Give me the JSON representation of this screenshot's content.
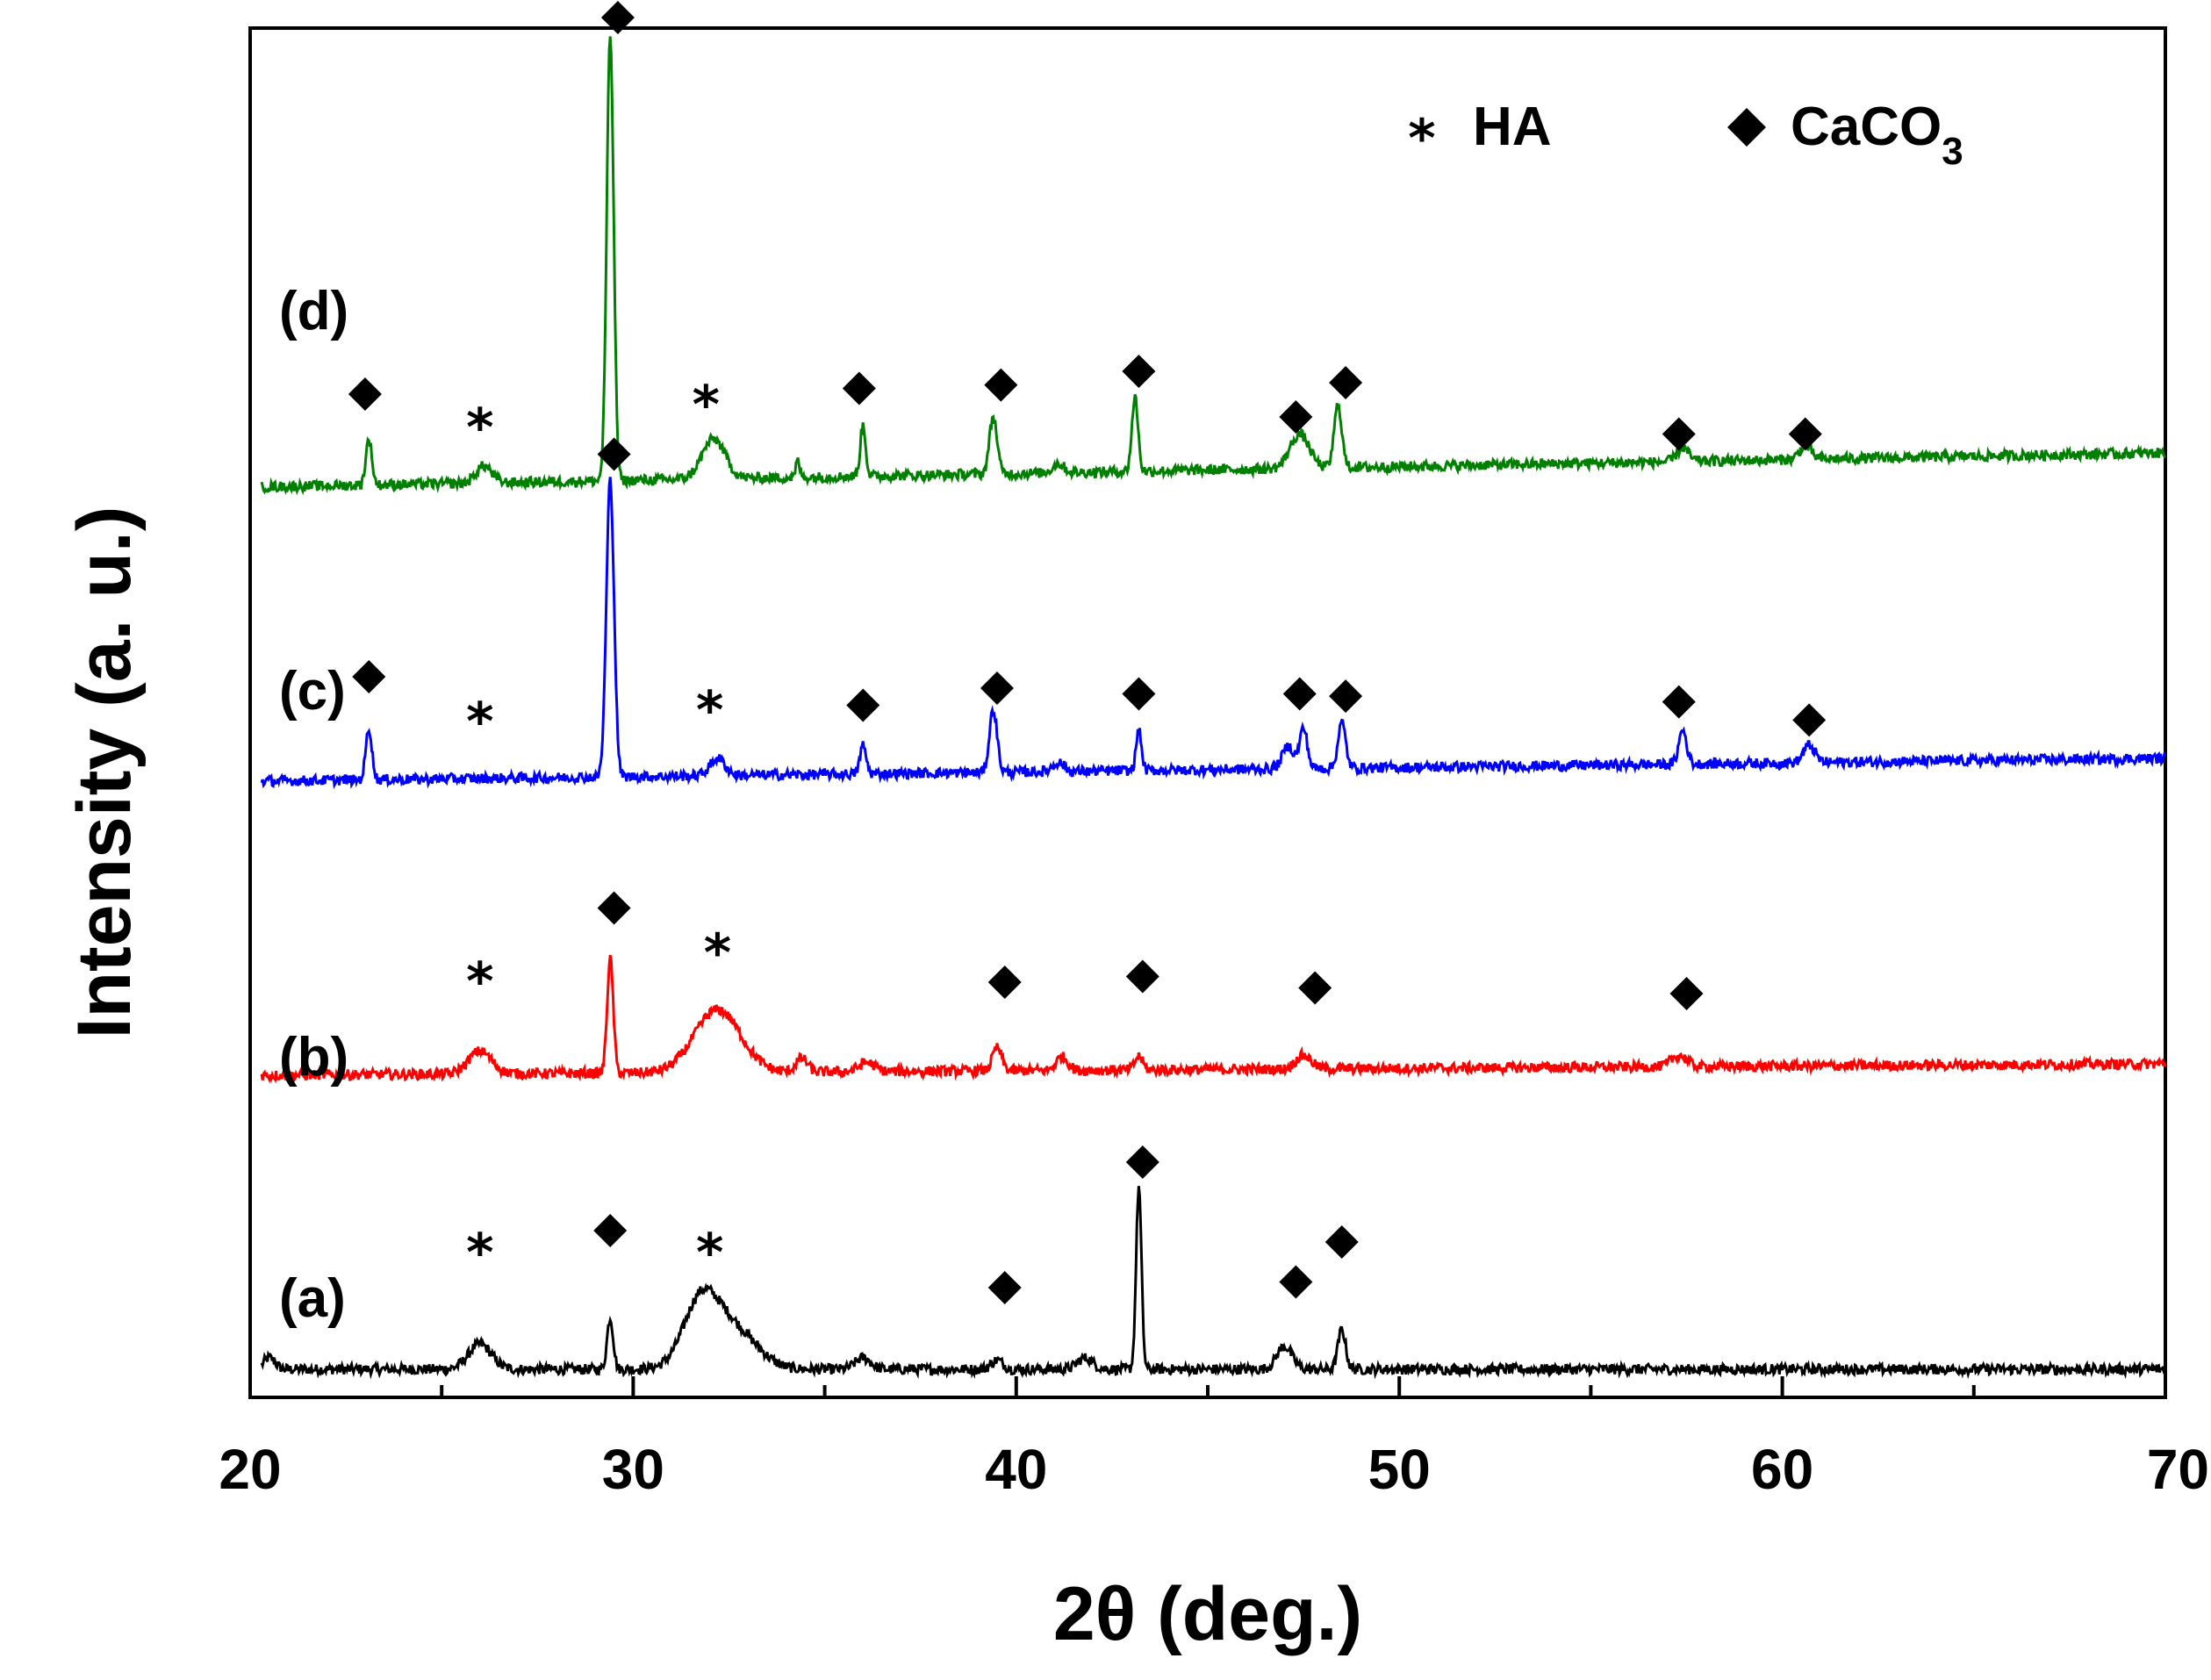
{
  "chart_data": {
    "type": "line",
    "title": "",
    "xlabel": "2θ (deg.)",
    "ylabel": "Intensity (a. u.)",
    "xlim": [
      20,
      70
    ],
    "xticks": [
      20,
      30,
      40,
      50,
      60,
      70
    ],
    "legend": {
      "placement": "top-right",
      "items": [
        {
          "symbol": "*",
          "label": "HA"
        },
        {
          "symbol": "◆",
          "label_main": "CaCO",
          "label_sub": "3"
        }
      ]
    },
    "series": [
      {
        "name": "(a)",
        "color": "#000000",
        "baseline": 0,
        "peaks": [
          [
            20.5,
            0.1,
            0.15
          ],
          [
            26.0,
            0.22,
            0.3
          ],
          [
            29.4,
            0.45,
            0.08
          ],
          [
            31.7,
            0.3,
            0.4
          ],
          [
            32.1,
            0.45,
            0.6
          ],
          [
            33.0,
            0.15,
            0.5
          ],
          [
            36.0,
            0.1,
            0.2
          ],
          [
            39.5,
            0.08,
            0.15
          ],
          [
            41.8,
            0.1,
            0.2
          ],
          [
            43.2,
            1.6,
            0.07
          ],
          [
            47.0,
            0.2,
            0.2
          ],
          [
            48.5,
            0.35,
            0.1
          ]
        ],
        "markers": [
          {
            "type": "HA",
            "x": 26.0,
            "level": 0.85
          },
          {
            "type": "CaCO3",
            "x": 29.4,
            "level": 1.0
          },
          {
            "type": "HA",
            "x": 32.0,
            "level": 0.85
          },
          {
            "type": "CaCO3",
            "x": 39.7,
            "level": 0.5
          },
          {
            "type": "CaCO3",
            "x": 43.3,
            "level": 1.6
          },
          {
            "type": "CaCO3",
            "x": 47.3,
            "level": 0.55
          },
          {
            "type": "CaCO3",
            "x": 48.5,
            "level": 0.9
          }
        ]
      },
      {
        "name": "(b)",
        "color": "#ff0000",
        "baseline": 1,
        "peaks": [
          [
            26.0,
            0.2,
            0.3
          ],
          [
            29.4,
            1.0,
            0.08
          ],
          [
            32.2,
            0.55,
            0.6
          ],
          [
            34.4,
            0.12,
            0.15
          ],
          [
            36.1,
            0.08,
            0.2
          ],
          [
            39.5,
            0.2,
            0.12
          ],
          [
            41.2,
            0.12,
            0.15
          ],
          [
            43.2,
            0.12,
            0.1
          ],
          [
            47.5,
            0.12,
            0.2
          ],
          [
            57.3,
            0.1,
            0.2
          ]
        ],
        "markers": [
          {
            "type": "HA",
            "x": 26.0,
            "level": 0.65
          },
          {
            "type": "CaCO3",
            "x": 29.5,
            "level": 1.25
          },
          {
            "type": "HA",
            "x": 32.2,
            "level": 0.9
          },
          {
            "type": "CaCO3",
            "x": 39.7,
            "level": 0.6
          },
          {
            "type": "CaCO3",
            "x": 43.3,
            "level": 0.65
          },
          {
            "type": "CaCO3",
            "x": 47.8,
            "level": 0.55
          },
          {
            "type": "CaCO3",
            "x": 57.5,
            "level": 0.5
          }
        ]
      },
      {
        "name": "(c)",
        "color": "#0000ff",
        "baseline": 2,
        "peaks": [
          [
            23.1,
            0.45,
            0.08
          ],
          [
            29.4,
            2.6,
            0.1
          ],
          [
            32.2,
            0.15,
            0.2
          ],
          [
            36.0,
            0.25,
            0.08
          ],
          [
            39.4,
            0.55,
            0.1
          ],
          [
            41.1,
            0.08,
            0.15
          ],
          [
            43.2,
            0.35,
            0.07
          ],
          [
            47.1,
            0.2,
            0.15
          ],
          [
            47.5,
            0.35,
            0.1
          ],
          [
            48.5,
            0.4,
            0.1
          ],
          [
            57.4,
            0.3,
            0.1
          ],
          [
            60.7,
            0.15,
            0.15
          ]
        ],
        "markers": [
          {
            "type": "CaCO3",
            "x": 23.1,
            "level": 0.7
          },
          {
            "type": "HA",
            "x": 26.0,
            "level": 0.35
          },
          {
            "type": "CaCO3",
            "x": 29.5,
            "level": 2.65
          },
          {
            "type": "HA",
            "x": 32.0,
            "level": 0.45
          },
          {
            "type": "CaCO3",
            "x": 36.0,
            "level": 0.45
          },
          {
            "type": "CaCO3",
            "x": 39.5,
            "level": 0.6
          },
          {
            "type": "CaCO3",
            "x": 43.2,
            "level": 0.55
          },
          {
            "type": "CaCO3",
            "x": 47.4,
            "level": 0.55
          },
          {
            "type": "CaCO3",
            "x": 48.6,
            "level": 0.53
          },
          {
            "type": "CaCO3",
            "x": 57.3,
            "level": 0.48
          },
          {
            "type": "CaCO3",
            "x": 60.7,
            "level": 0.32
          }
        ]
      },
      {
        "name": "(d)",
        "color": "#008000",
        "baseline": 3,
        "peaks": [
          [
            23.1,
            0.4,
            0.08
          ],
          [
            26.1,
            0.15,
            0.2
          ],
          [
            29.4,
            3.9,
            0.09
          ],
          [
            32.1,
            0.35,
            0.3
          ],
          [
            34.3,
            0.15,
            0.05
          ],
          [
            36.0,
            0.45,
            0.07
          ],
          [
            39.4,
            0.5,
            0.1
          ],
          [
            41.1,
            0.08,
            0.15
          ],
          [
            43.1,
            0.65,
            0.08
          ],
          [
            47.4,
            0.3,
            0.25
          ],
          [
            48.4,
            0.55,
            0.1
          ],
          [
            57.4,
            0.12,
            0.15
          ],
          [
            60.6,
            0.12,
            0.15
          ]
        ],
        "markers": [
          {
            "type": "CaCO3",
            "x": 23.0,
            "level": 0.6
          },
          {
            "type": "HA",
            "x": 26.0,
            "level": 0.35
          },
          {
            "type": "CaCO3",
            "x": 29.6,
            "level": 3.9
          },
          {
            "type": "HA",
            "x": 31.9,
            "level": 0.55
          },
          {
            "type": "CaCO3",
            "x": 35.9,
            "level": 0.65
          },
          {
            "type": "CaCO3",
            "x": 39.6,
            "level": 0.68
          },
          {
            "type": "CaCO3",
            "x": 43.2,
            "level": 0.8
          },
          {
            "type": "CaCO3",
            "x": 47.3,
            "level": 0.4
          },
          {
            "type": "CaCO3",
            "x": 48.6,
            "level": 0.7
          },
          {
            "type": "CaCO3",
            "x": 57.3,
            "level": 0.25
          },
          {
            "type": "CaCO3",
            "x": 60.6,
            "level": 0.25
          }
        ]
      }
    ]
  }
}
